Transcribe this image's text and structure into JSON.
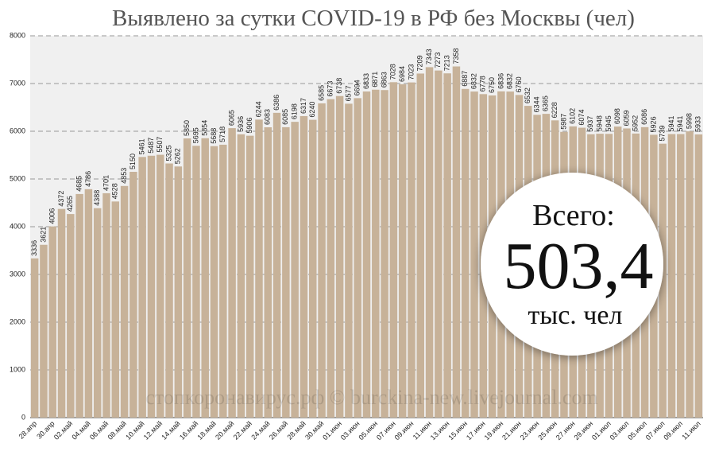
{
  "chart_data": {
    "type": "bar",
    "title": "Выявлено за сутки COVID-19 в РФ без Москвы (чел)",
    "categories": [
      "28.апр",
      null,
      "30.апр",
      null,
      "02.май",
      null,
      "04.май",
      null,
      "06.май",
      null,
      "08.май",
      null,
      "10.май",
      null,
      "12.май",
      null,
      "14.май",
      null,
      "16.май",
      null,
      "18.май",
      null,
      "20.май",
      null,
      "22.май",
      null,
      "24.май",
      null,
      "26.май",
      null,
      "28.май",
      null,
      "30.май",
      null,
      "01.июн",
      null,
      "03.июн",
      null,
      "05.июн",
      null,
      "07.июн",
      null,
      "09.июн",
      null,
      "11.июн",
      null,
      "13.июн",
      null,
      "15.июн",
      null,
      "17.июн",
      null,
      "19.июн",
      null,
      "21.июн",
      null,
      "23.июн",
      null,
      "25.июн",
      null,
      "27.июн",
      null,
      "29.июн",
      null,
      "01.июл",
      null,
      "03.июл",
      null,
      "05.июл",
      null,
      "07.июл",
      null,
      "09.июл",
      null,
      "11.июл"
    ],
    "values": [
      3336,
      3621,
      4006,
      4372,
      4265,
      4685,
      4786,
      4388,
      4701,
      4528,
      4853,
      5150,
      5461,
      5487,
      5507,
      5325,
      5262,
      5850,
      5695,
      5854,
      5688,
      5718,
      6065,
      5936,
      5906,
      6244,
      6083,
      6386,
      6085,
      6198,
      6317,
      6240,
      6585,
      6673,
      6738,
      6577,
      6694,
      6833,
      6871,
      6863,
      7028,
      6984,
      7023,
      7209,
      7343,
      7273,
      7213,
      7358,
      6887,
      6832,
      6778,
      6750,
      6836,
      6832,
      6760,
      6532,
      6344,
      6365,
      6228,
      5987,
      6102,
      6074,
      5937,
      5948,
      5945,
      6098,
      6059,
      5952,
      6086,
      5926,
      5739,
      5941,
      5941,
      5998,
      5933
    ],
    "color": "#c7b299",
    "ylim": [
      0,
      8000
    ],
    "yticks": [
      0,
      1000,
      2000,
      3000,
      4000,
      5000,
      6000,
      7000,
      8000
    ],
    "grid": true,
    "annotations": {
      "total_label": "Всего:",
      "total_value": "503,4",
      "total_unit": "тыс. чел",
      "watermark": "стопкоронавирус.рф © burckina-new.livejournal.com"
    }
  }
}
